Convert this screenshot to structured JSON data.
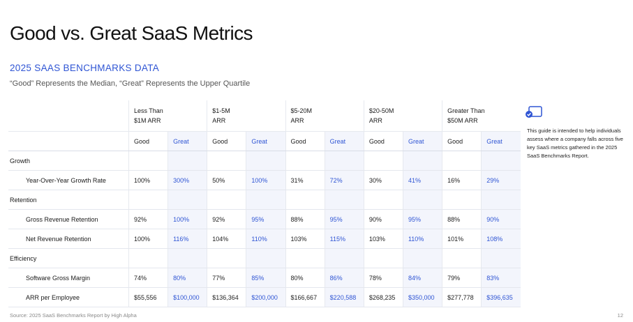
{
  "title": "Good vs. Great SaaS Metrics",
  "section_title": "2025 SAAS BENCHMARKS DATA",
  "subtitle": "“Good” Represents the Median, “Great” Represents the Upper Quartile",
  "groups": [
    {
      "line1": "Less Than",
      "line2": "$1M ARR"
    },
    {
      "line1": "$1-5M",
      "line2": "ARR"
    },
    {
      "line1": "$5-20M",
      "line2": "ARR"
    },
    {
      "line1": "$20-50M",
      "line2": "ARR"
    },
    {
      "line1": "Greater Than",
      "line2": "$50M ARR"
    }
  ],
  "sub_headers": {
    "good": "Good",
    "great": "Great"
  },
  "categories": [
    {
      "name": "Growth",
      "rows": [
        {
          "metric": "Year-Over-Year Growth Rate",
          "values": [
            "100%",
            "300%",
            "50%",
            "100%",
            "31%",
            "72%",
            "30%",
            "41%",
            "16%",
            "29%"
          ]
        }
      ]
    },
    {
      "name": "Retention",
      "rows": [
        {
          "metric": "Gross Revenue Retention",
          "values": [
            "92%",
            "100%",
            "92%",
            "95%",
            "88%",
            "95%",
            "90%",
            "95%",
            "88%",
            "90%"
          ]
        },
        {
          "metric": "Net Revenue Retention",
          "values": [
            "100%",
            "116%",
            "104%",
            "110%",
            "103%",
            "115%",
            "103%",
            "110%",
            "101%",
            "108%"
          ]
        }
      ]
    },
    {
      "name": "Efficiency",
      "rows": [
        {
          "metric": "Software Gross Margin",
          "values": [
            "74%",
            "80%",
            "77%",
            "85%",
            "80%",
            "86%",
            "78%",
            "84%",
            "79%",
            "83%"
          ]
        },
        {
          "metric": "ARR per Employee",
          "values": [
            "$55,556",
            "$100,000",
            "$136,364",
            "$200,000",
            "$166,667",
            "$220,588",
            "$268,235",
            "$350,000",
            "$277,778",
            "$396,635"
          ]
        }
      ]
    }
  ],
  "side_note": "This guide is intended to help individuals assess where a company falls across five key SaaS metrics gathered in the 2025 SaaS Benchmarks Report.",
  "footer": "Source: 2025 SaaS Benchmarks Report by High Alpha",
  "page_number": "12",
  "colors": {
    "accent": "#2f55d4",
    "great_bg": "#f3f5fc"
  }
}
